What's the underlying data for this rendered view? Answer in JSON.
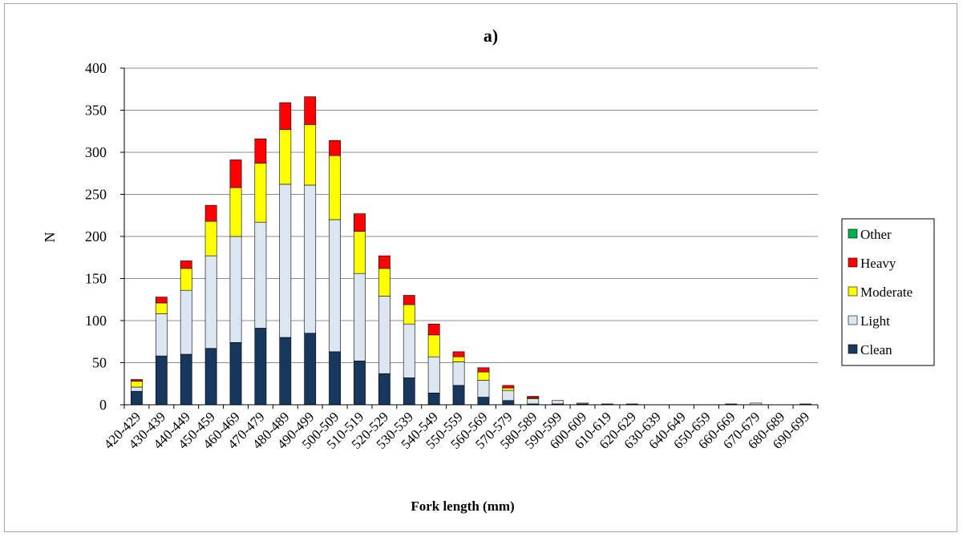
{
  "chart_data": {
    "type": "bar",
    "stacked": true,
    "title": "a)",
    "xlabel": "Fork length (mm)",
    "ylabel": "N",
    "ylim": [
      0,
      400
    ],
    "yticks": [
      "0",
      "50",
      "100",
      "150",
      "200",
      "250",
      "300",
      "350",
      "400"
    ],
    "grid": true,
    "legend_position": "right",
    "categories": [
      "420-429",
      "430-439",
      "440-449",
      "450-459",
      "460-469",
      "470-479",
      "480-489",
      "490-499",
      "500-509",
      "510-519",
      "520-529",
      "530-539",
      "540-549",
      "550-559",
      "560-569",
      "570-579",
      "580-589",
      "590-599",
      "600-609",
      "610-619",
      "620-629",
      "630-639",
      "640-649",
      "650-659",
      "660-669",
      "670-679",
      "680-689",
      "690-699"
    ],
    "series": [
      {
        "name": "Clean",
        "color": "#17375e",
        "values": [
          16,
          58,
          60,
          67,
          74,
          91,
          80,
          85,
          63,
          52,
          37,
          32,
          14,
          23,
          9,
          5,
          1,
          1,
          1,
          1,
          1,
          0,
          0,
          0,
          1,
          0,
          0,
          1
        ]
      },
      {
        "name": "Light",
        "color": "#dce6f1",
        "values": [
          5,
          50,
          76,
          110,
          126,
          126,
          182,
          176,
          157,
          104,
          92,
          64,
          43,
          28,
          20,
          12,
          6,
          4,
          1,
          0,
          0,
          0,
          0,
          0,
          0,
          2,
          0,
          0
        ]
      },
      {
        "name": "Moderate",
        "color": "#ffff00",
        "values": [
          7,
          13,
          26,
          41,
          58,
          70,
          65,
          72,
          76,
          50,
          33,
          23,
          26,
          6,
          10,
          3,
          1,
          0,
          0,
          0,
          0,
          0,
          0,
          0,
          0,
          0,
          0,
          0
        ]
      },
      {
        "name": "Heavy",
        "color": "#ff0000",
        "values": [
          2,
          7,
          9,
          19,
          33,
          29,
          32,
          33,
          18,
          21,
          15,
          11,
          13,
          6,
          5,
          3,
          2,
          0,
          0,
          0,
          0,
          0,
          0,
          0,
          0,
          0,
          0,
          0
        ]
      },
      {
        "name": "Other",
        "color": "#00b050",
        "values": [
          0,
          0,
          0,
          0,
          0,
          0,
          0,
          0,
          0,
          0,
          0,
          0,
          0,
          0,
          0,
          0,
          0,
          0,
          0,
          0,
          0,
          0,
          0,
          0,
          0,
          0,
          0,
          0
        ]
      }
    ],
    "legend_order": [
      "Other",
      "Heavy",
      "Moderate",
      "Light",
      "Clean"
    ]
  }
}
